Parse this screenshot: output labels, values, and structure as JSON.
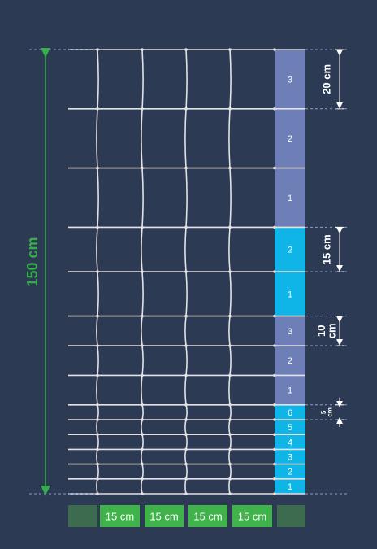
{
  "colors": {
    "background": "#2d3a54",
    "wire": "#e2e2e2",
    "zone_violet": "#6e7fb7",
    "zone_cyan": "#0fb5e6",
    "accent_green": "#35ad4b",
    "footer_green": "#3fb24a",
    "footer_dark": "#3d6b4f",
    "dimension_white": "#ffffff"
  },
  "total_height": {
    "value": 150,
    "label": "150 cm"
  },
  "column_spacing_label": "15 cm",
  "column_count": 4,
  "zones": [
    {
      "color": "zone_violet",
      "spacing_cm": 20,
      "labels": [
        "3",
        "2",
        "1"
      ],
      "dimension": {
        "line1": "20 cm",
        "line2": ""
      }
    },
    {
      "color": "zone_cyan",
      "spacing_cm": 15,
      "labels": [
        "2",
        "1"
      ],
      "dimension": {
        "line1": "15 cm",
        "line2": ""
      }
    },
    {
      "color": "zone_violet",
      "spacing_cm": 10,
      "labels": [
        "3",
        "2",
        "1"
      ],
      "dimension": {
        "line1": "10",
        "line2": "cm"
      }
    },
    {
      "color": "zone_cyan",
      "spacing_cm": 5,
      "labels": [
        "6",
        "5",
        "4",
        "3",
        "2",
        "1"
      ],
      "dimension": {
        "line1": "5",
        "line2": "cm"
      }
    }
  ]
}
